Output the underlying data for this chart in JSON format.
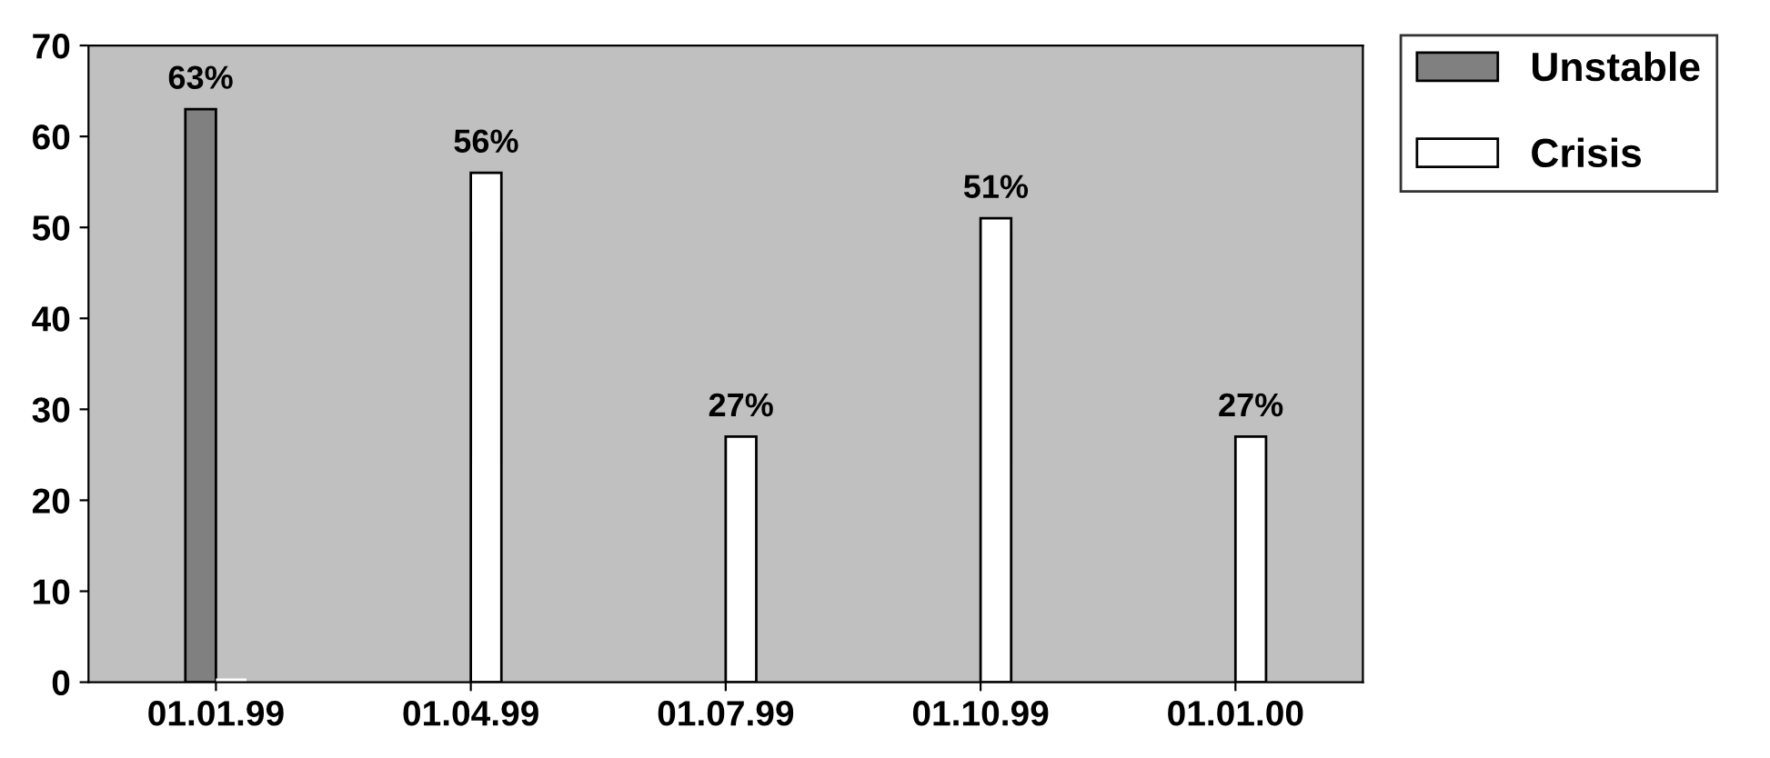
{
  "chart_data": {
    "type": "bar",
    "categories": [
      "01.01.99",
      "01.04.99",
      "01.07.99",
      "01.10.99",
      "01.01.00"
    ],
    "series": [
      {
        "name": "Unstable",
        "color": "#808080",
        "values": [
          63,
          null,
          null,
          null,
          null
        ],
        "value_labels": [
          "63%",
          null,
          null,
          null,
          null
        ]
      },
      {
        "name": "Crisis",
        "color": "#ffffff",
        "values": [
          0,
          56,
          27,
          51,
          27
        ],
        "value_labels": [
          null,
          "56%",
          "27%",
          "51%",
          "27%"
        ]
      }
    ],
    "ylim": [
      0,
      70
    ],
    "yticks": [
      0,
      10,
      20,
      30,
      40,
      50,
      60,
      70
    ],
    "grid": false,
    "legend": "top right"
  }
}
